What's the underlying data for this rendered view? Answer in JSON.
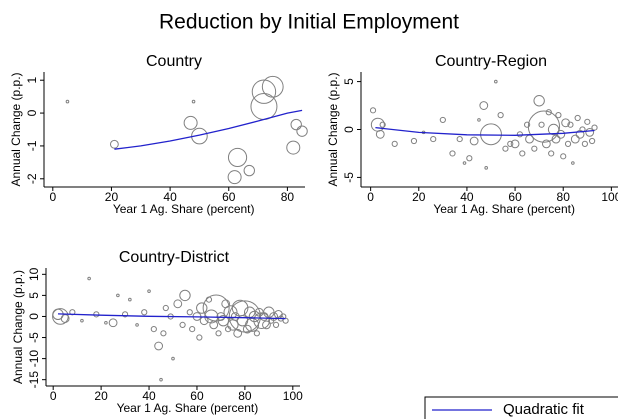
{
  "title": "Reduction by Initial Employment",
  "legend": {
    "label": "Quadratic fit",
    "color": "#2222cc"
  },
  "chart_data": [
    {
      "type": "scatter",
      "title": "Country",
      "xlabel": "Year 1 Ag. Share (percent)",
      "ylabel": "Annual Change (p.p.)",
      "color": "#808080",
      "xlim": [
        -3,
        86
      ],
      "ylim": [
        -2.25,
        1.25
      ],
      "xticks": [
        0,
        20,
        40,
        60,
        80
      ],
      "yticks": [
        1,
        0,
        -1,
        -2
      ],
      "points": {
        "x": [
          5,
          21,
          47,
          48,
          50,
          63,
          62,
          67,
          72,
          72,
          75,
          82,
          83,
          85
        ],
        "values": [
          0.35,
          -0.95,
          -0.3,
          0.35,
          -0.7,
          -1.35,
          -1.95,
          -1.75,
          0.65,
          0.2,
          0.8,
          -1.05,
          -0.35,
          -0.55
        ],
        "sizes": [
          1,
          3,
          5,
          1,
          6,
          7,
          5,
          4,
          9,
          10,
          8,
          5,
          4,
          4
        ]
      },
      "fit": {
        "x": [
          21,
          30,
          40,
          50,
          60,
          70,
          80,
          85
        ],
        "values": [
          -1.1,
          -1.0,
          -0.85,
          -0.67,
          -0.47,
          -0.24,
          0.0,
          0.08
        ]
      }
    },
    {
      "type": "scatter",
      "title": "Country-Region",
      "xlabel": "Year 1 Ag. Share (percent)",
      "ylabel": "Annual Change (p.p.)",
      "color": "#808080",
      "xlim": [
        -4,
        104
      ],
      "ylim": [
        -6,
        6
      ],
      "xticks": [
        0,
        20,
        40,
        60,
        80,
        100
      ],
      "yticks": [
        5,
        0,
        -5
      ],
      "points": {
        "x": [
          1,
          3,
          4,
          5,
          10,
          18,
          22,
          26,
          30,
          34,
          37,
          39,
          41,
          43,
          45,
          47,
          48,
          50,
          52,
          54,
          56,
          58,
          60,
          62,
          63,
          65,
          66,
          68,
          70,
          71,
          72,
          73,
          74,
          75,
          76,
          77,
          78,
          79,
          80,
          81,
          82,
          83,
          84,
          85,
          86,
          87,
          88,
          89,
          90,
          91,
          92,
          93
        ],
        "values": [
          2,
          0.5,
          -0.5,
          0.5,
          -1.5,
          -1.2,
          -0.3,
          -1,
          1,
          -2.5,
          -1,
          -3.5,
          -3,
          -1.2,
          1,
          2.5,
          -4,
          -0.5,
          5,
          1.5,
          -2,
          -1.5,
          -1.5,
          -0.5,
          -2.5,
          0.5,
          -1,
          -2,
          3,
          0.5,
          0.3,
          -1.5,
          1.8,
          -2.5,
          0,
          -1,
          1.5,
          -0.5,
          -2.8,
          0.7,
          -1.5,
          0.5,
          -3.5,
          -1,
          1.2,
          -0.5,
          0,
          -1.5,
          0.8,
          -0.3,
          -1.2,
          0.2
        ],
        "sizes": [
          2,
          5,
          3,
          2,
          2,
          2,
          1,
          2,
          2,
          2,
          2,
          1,
          2,
          3,
          1,
          3,
          1,
          8,
          1,
          2,
          2,
          2,
          3,
          2,
          2,
          2,
          3,
          2,
          4,
          2,
          12,
          3,
          2,
          2,
          4,
          3,
          2,
          3,
          2,
          3,
          2,
          2,
          1,
          3,
          2,
          3,
          2,
          2,
          2,
          3,
          2,
          2
        ]
      },
      "fit": {
        "x": [
          2,
          20,
          40,
          60,
          80,
          93
        ],
        "values": [
          0.2,
          -0.3,
          -0.55,
          -0.6,
          -0.4,
          -0.1
        ]
      }
    },
    {
      "type": "scatter",
      "title": "Country-District",
      "xlabel": "Year 1 Ag. Share (percent)",
      "ylabel": "Annual Change (p.p.)",
      "color": "#808080",
      "xlim": [
        -3,
        103
      ],
      "ylim": [
        -16.5,
        11.5
      ],
      "xticks": [
        0,
        20,
        40,
        60,
        80,
        100
      ],
      "yticks": [
        10,
        5,
        0,
        -5,
        -10,
        -15
      ],
      "points": {
        "x": [
          2,
          3,
          5,
          8,
          12,
          15,
          18,
          22,
          25,
          27,
          30,
          32,
          35,
          38,
          40,
          42,
          44,
          45,
          46,
          47,
          49,
          50,
          52,
          54,
          55,
          57,
          58,
          60,
          61,
          62,
          63,
          65,
          66,
          67,
          68,
          69,
          70,
          71,
          72,
          73,
          74,
          75,
          76,
          77,
          78,
          79,
          80,
          81,
          82,
          83,
          84,
          85,
          86,
          87,
          88,
          89,
          90,
          91,
          92,
          93,
          94,
          95,
          96,
          97
        ],
        "values": [
          0.5,
          0,
          -0.5,
          1,
          -1,
          9,
          0.5,
          -1.5,
          -1.5,
          5,
          0.5,
          4,
          -2,
          1,
          6,
          -3,
          -7,
          -15,
          -4,
          2,
          0,
          -10,
          3,
          -2,
          5,
          1,
          -3,
          0,
          -5,
          2,
          -1,
          4,
          0,
          -2,
          2,
          -4,
          0,
          -1,
          3,
          -3,
          1,
          -2,
          0,
          -4,
          2,
          -1,
          0,
          -3,
          1,
          -2,
          0,
          -4,
          1,
          -1,
          0,
          -2,
          1,
          -1,
          0,
          -2,
          0.5,
          -0.5,
          0,
          -1
        ],
        "sizes": [
          4,
          6,
          3,
          2,
          1,
          1,
          2,
          1,
          3,
          1,
          2,
          1,
          1,
          2,
          1,
          2,
          3,
          1,
          2,
          2,
          2,
          1,
          3,
          2,
          4,
          2,
          2,
          3,
          2,
          4,
          3,
          2,
          5,
          3,
          10,
          2,
          3,
          4,
          3,
          2,
          5,
          4,
          3,
          3,
          6,
          4,
          12,
          3,
          4,
          5,
          4,
          2,
          3,
          6,
          3,
          3,
          4,
          2,
          3,
          2,
          3,
          2,
          2,
          2
        ]
      },
      "fit": {
        "x": [
          2,
          20,
          40,
          60,
          80,
          97
        ],
        "values": [
          0.6,
          0.3,
          0.05,
          -0.1,
          -0.3,
          -0.5
        ]
      }
    }
  ]
}
